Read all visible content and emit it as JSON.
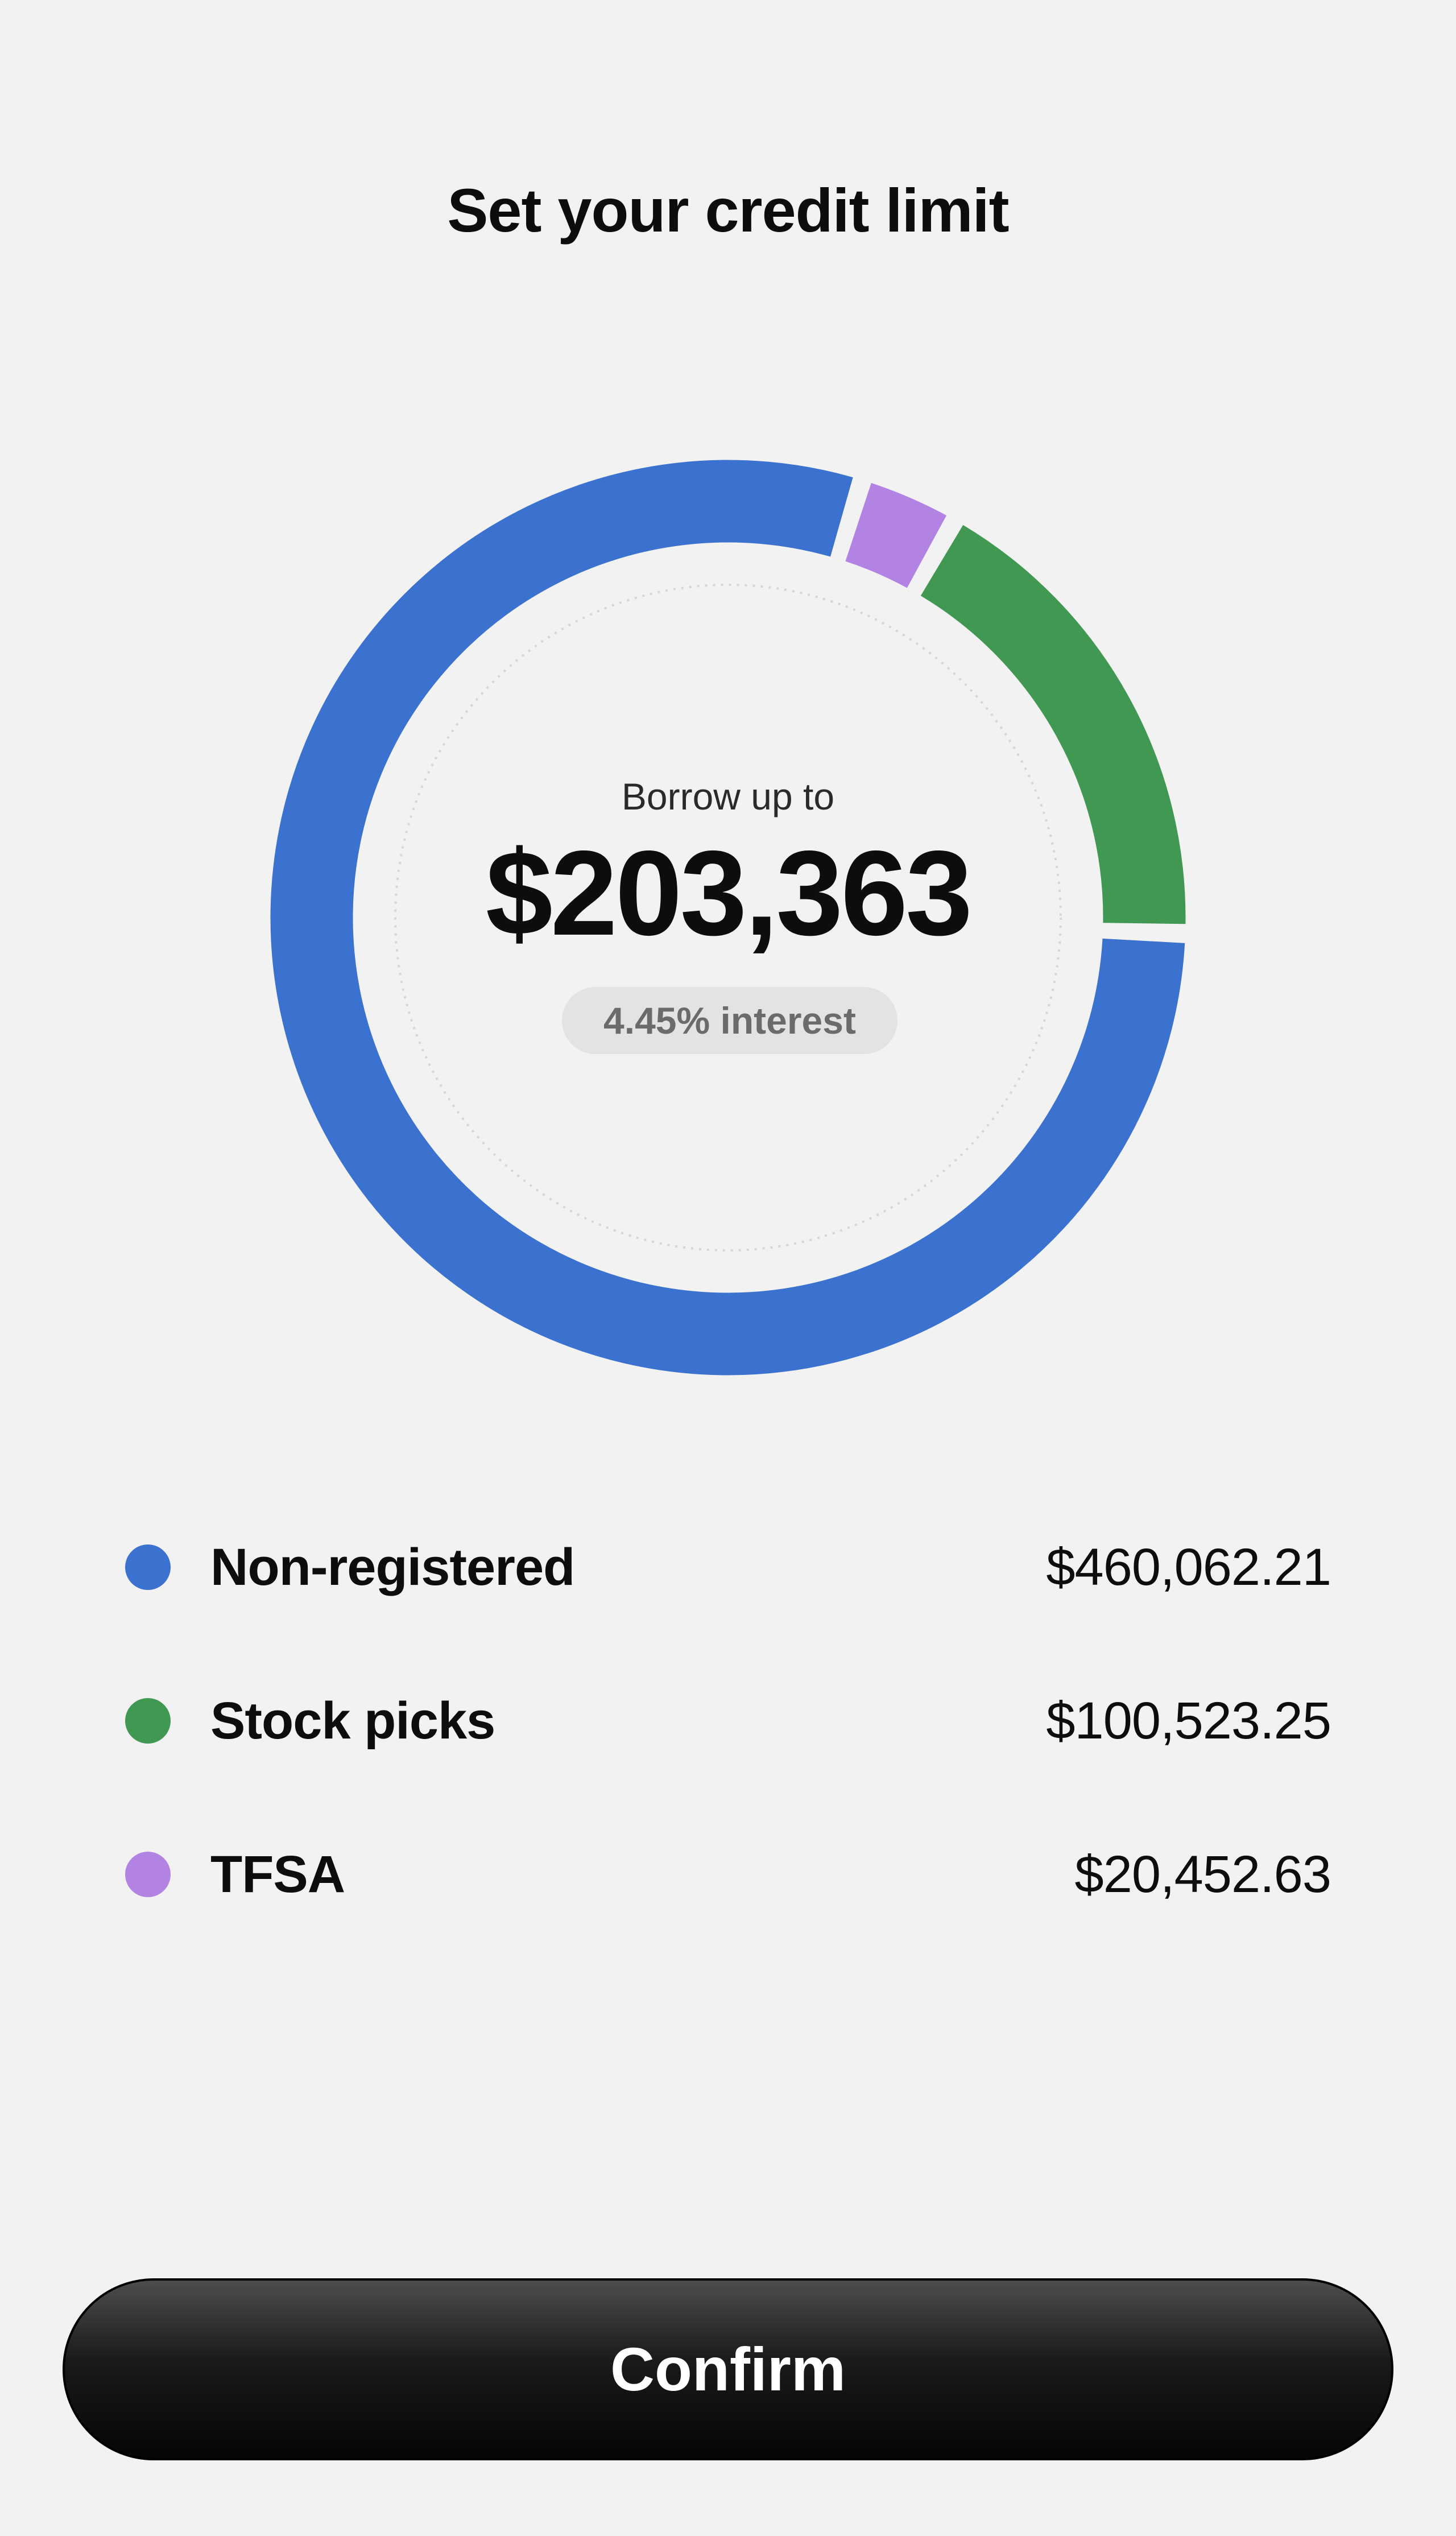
{
  "header": {
    "title": "Set your credit limit"
  },
  "summary": {
    "label": "Borrow up to",
    "amount": "$203,363",
    "interest": "4.45% interest"
  },
  "accounts": [
    {
      "name": "Non-registered",
      "value": "$460,062.21",
      "amount": 460062.21,
      "color": "#3c72cf"
    },
    {
      "name": "Stock picks",
      "value": "$100,523.25",
      "amount": 100523.25,
      "color": "#419853"
    },
    {
      "name": "TFSA",
      "value": "$20,452.63",
      "amount": 20452.63,
      "color": "#b383e3"
    }
  ],
  "actions": {
    "confirm_label": "Confirm"
  }
}
